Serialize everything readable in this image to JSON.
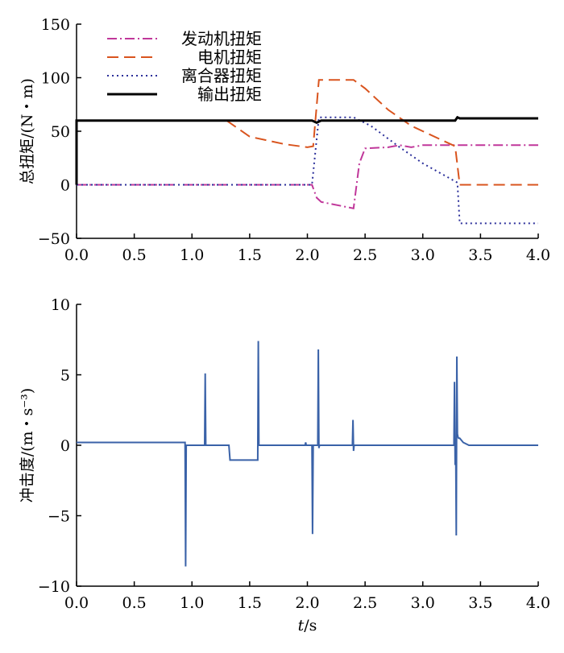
{
  "chart_data": [
    {
      "type": "line",
      "ylabel": "总扭矩/(N・m)",
      "xlim": [
        0,
        4
      ],
      "ylim": [
        -50,
        150
      ],
      "xticks": [
        "0.0",
        "0.5",
        "1.0",
        "1.5",
        "2.0",
        "2.5",
        "3.0",
        "3.5",
        "4.0"
      ],
      "yticks": [
        "-50",
        "0",
        "50",
        "100",
        "150"
      ],
      "legend_position": "top-left",
      "series": [
        {
          "name": "发动机扭矩",
          "color": "#c0379a",
          "dash": "dashdot",
          "x": [
            0,
            2.04,
            2.08,
            2.12,
            2.4,
            2.45,
            2.5,
            2.7,
            2.8,
            2.9,
            3.0,
            3.3,
            4.0
          ],
          "y": [
            0,
            0,
            -12,
            -16,
            -22,
            20,
            34,
            35,
            37,
            35,
            37,
            37,
            37
          ]
        },
        {
          "name": "电机扭矩",
          "color": "#d9541e",
          "dash": "dashed",
          "x": [
            1.3,
            1.5,
            1.8,
            2.0,
            2.05,
            2.1,
            2.4,
            2.5,
            2.7,
            2.9,
            3.2,
            3.28,
            3.32,
            4.0
          ],
          "y": [
            60,
            45,
            38,
            35,
            36,
            98,
            98,
            90,
            70,
            55,
            40,
            36,
            0,
            0
          ]
        },
        {
          "name": "离合器扭矩",
          "color": "#2b2f9a",
          "dash": "dotted",
          "x": [
            0,
            2.04,
            2.1,
            2.4,
            2.55,
            2.8,
            3.0,
            3.3,
            3.32,
            4.0
          ],
          "y": [
            0,
            0,
            63,
            63,
            55,
            35,
            20,
            2,
            -36,
            -36
          ]
        },
        {
          "name": "输出扭矩",
          "color": "#000000",
          "dash": "solid",
          "x": [
            0,
            0,
            0.005,
            2.04,
            2.08,
            2.12,
            3.28,
            3.3,
            3.32,
            4.0
          ],
          "y": [
            0,
            60,
            60,
            60,
            58,
            60,
            60,
            63,
            62,
            62
          ]
        }
      ]
    },
    {
      "type": "line",
      "ylabel": "冲击度/(m・s⁻³)",
      "xlabel_var": "t",
      "xlabel_unit": "/s",
      "xlim": [
        0,
        4
      ],
      "ylim": [
        -10,
        10
      ],
      "xticks": [
        "0.0",
        "0.5",
        "1.0",
        "1.5",
        "2.0",
        "2.5",
        "3.0",
        "3.5",
        "4.0"
      ],
      "yticks": [
        "-10",
        "-5",
        "0",
        "5",
        "10"
      ],
      "series": [
        {
          "name": "冲击度",
          "color": "#3a62a8",
          "dash": "solid",
          "x": [
            0,
            0.94,
            0.945,
            0.95,
            0.955,
            1.11,
            1.115,
            1.12,
            1.125,
            1.32,
            1.33,
            1.57,
            1.575,
            1.58,
            1.59,
            1.98,
            1.985,
            1.99,
            2.04,
            2.045,
            2.05,
            2.055,
            2.09,
            2.095,
            2.1,
            2.105,
            2.39,
            2.395,
            2.4,
            2.405,
            3.27,
            3.275,
            3.28,
            3.285,
            3.29,
            3.295,
            3.3,
            3.305,
            3.31,
            3.32,
            3.35,
            3.4,
            3.5,
            4.0
          ],
          "y": [
            0.2,
            0.2,
            -8.6,
            0,
            0,
            0,
            5.1,
            0,
            0,
            0,
            -1.05,
            -1.05,
            7.4,
            0,
            0,
            0,
            0.2,
            0,
            0,
            -6.3,
            0,
            0,
            0,
            6.8,
            -0.2,
            0,
            0,
            1.8,
            -0.4,
            0,
            0,
            4.5,
            -1.4,
            0.5,
            -6.4,
            6.3,
            0.8,
            0.6,
            0.5,
            0.5,
            0.2,
            0,
            0,
            0
          ]
        }
      ]
    }
  ]
}
